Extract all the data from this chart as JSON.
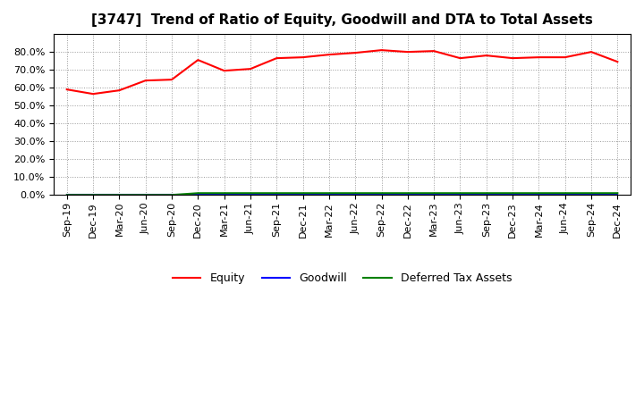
{
  "title": "[3747]  Trend of Ratio of Equity, Goodwill and DTA to Total Assets",
  "x_labels": [
    "Sep-19",
    "Dec-19",
    "Mar-20",
    "Jun-20",
    "Sep-20",
    "Dec-20",
    "Mar-21",
    "Jun-21",
    "Sep-21",
    "Dec-21",
    "Mar-22",
    "Jun-22",
    "Sep-22",
    "Dec-22",
    "Mar-23",
    "Jun-23",
    "Sep-23",
    "Dec-23",
    "Mar-24",
    "Jun-24",
    "Sep-24",
    "Dec-24"
  ],
  "equity": [
    59.0,
    56.5,
    58.5,
    64.0,
    64.5,
    75.5,
    69.5,
    70.5,
    76.5,
    77.0,
    78.5,
    79.5,
    81.0,
    80.0,
    80.5,
    76.5,
    78.0,
    76.5,
    77.0,
    77.0,
    80.0,
    74.5
  ],
  "goodwill": [
    0.0,
    0.0,
    0.0,
    0.0,
    0.0,
    0.0,
    0.0,
    0.0,
    0.0,
    0.0,
    0.0,
    0.0,
    0.0,
    0.0,
    0.0,
    0.0,
    0.0,
    0.0,
    0.0,
    0.0,
    0.0,
    0.0
  ],
  "dta": [
    0.0,
    0.0,
    0.0,
    0.0,
    0.0,
    1.0,
    1.0,
    1.0,
    1.0,
    1.0,
    1.0,
    1.0,
    1.0,
    1.0,
    1.0,
    1.0,
    1.0,
    1.0,
    1.0,
    1.0,
    1.0,
    1.0
  ],
  "equity_color": "#FF0000",
  "goodwill_color": "#0000FF",
  "dta_color": "#008000",
  "bg_color": "#FFFFFF",
  "plot_bg_color": "#FFFFFF",
  "grid_color": "#999999",
  "ylim": [
    0,
    90
  ],
  "yticks": [
    0,
    10,
    20,
    30,
    40,
    50,
    60,
    70,
    80
  ],
  "legend_labels": [
    "Equity",
    "Goodwill",
    "Deferred Tax Assets"
  ],
  "title_fontsize": 11,
  "tick_fontsize": 8,
  "legend_fontsize": 9
}
